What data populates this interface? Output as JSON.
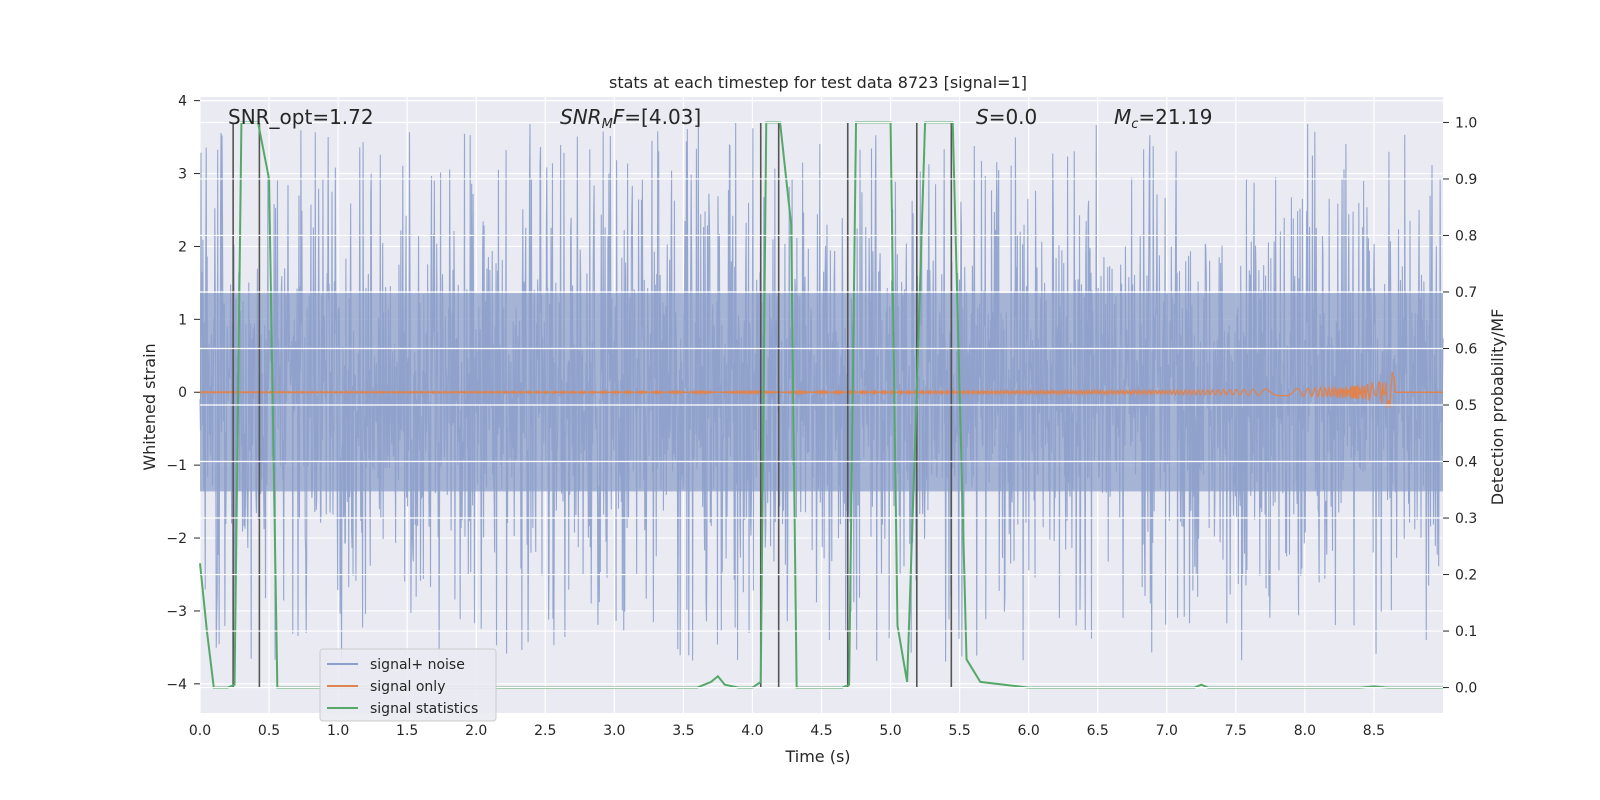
{
  "chart_data": {
    "type": "line",
    "title": "stats at each timestep for test data 8723 [signal=1]",
    "xlabel": "Time (s)",
    "ylabel_left": "Whitened strain",
    "ylabel_right": "Detection probability/MF",
    "xlim": [
      0.0,
      9.0
    ],
    "ylim_left": [
      -4.4,
      4.05
    ],
    "ylim_right": [
      -0.045,
      1.045
    ],
    "x_ticks": [
      "0.0",
      "0.5",
      "1.0",
      "1.5",
      "2.0",
      "2.5",
      "3.0",
      "3.5",
      "4.0",
      "4.5",
      "5.0",
      "5.5",
      "6.0",
      "6.5",
      "7.0",
      "7.5",
      "8.0",
      "8.5"
    ],
    "y_ticks_left": [
      "−4",
      "−3",
      "−2",
      "−1",
      "0",
      "1",
      "2",
      "3",
      "4"
    ],
    "y_ticks_right": [
      "0.0",
      "0.1",
      "0.2",
      "0.3",
      "0.4",
      "0.5",
      "0.6",
      "0.7",
      "0.8",
      "0.9",
      "1.0"
    ],
    "grid": true,
    "legend_position": "lower-left",
    "annotations": {
      "snr_opt": "SNR_opt=1.72",
      "snr_mf_sym": "SNR",
      "snr_mf_sub": "M",
      "snr_mf_tail": "F",
      "snr_mf_value": "=[4.03]",
      "s_sym": "S",
      "s_value": "=0.0",
      "mc_sym": "M",
      "mc_sub": "c",
      "mc_value": "=21.19"
    },
    "colors": {
      "signal_noise": "#8da0cb",
      "signal_only": "#dd8452",
      "signal_statistics": "#55a868",
      "vlines": "#555555",
      "background": "#eaeaf2",
      "grid": "#ffffff"
    },
    "series": [
      {
        "name": "signal+ noise",
        "axis": "left",
        "style": "noise band, typical envelope ±1.5, peaks up to ±3.5",
        "band_center": 0.0,
        "band_halfwidth": 1.6,
        "peak_max": 3.7
      },
      {
        "name": "signal only",
        "axis": "left",
        "style": "chirp near zero, amplitude growing to ~0.35 at merger",
        "merger_time": 8.65,
        "peak_amplitude": 0.35
      },
      {
        "name": "signal statistics",
        "axis": "right",
        "x": [
          0.0,
          0.05,
          0.1,
          0.2,
          0.25,
          0.3,
          0.42,
          0.5,
          0.56,
          0.6,
          1.0,
          2.0,
          3.0,
          3.6,
          3.7,
          3.75,
          3.8,
          3.9,
          4.0,
          4.06,
          4.1,
          4.2,
          4.28,
          4.32,
          4.65,
          4.7,
          4.75,
          5.0,
          5.05,
          5.12,
          5.18,
          5.25,
          5.45,
          5.55,
          5.65,
          6.0,
          7.0,
          7.2,
          7.25,
          7.3,
          8.0,
          8.4,
          8.5,
          8.6,
          9.0
        ],
        "y": [
          0.22,
          0.1,
          0.0,
          0.0,
          0.005,
          1.0,
          1.0,
          0.9,
          0.0,
          0.0,
          0.0,
          0.0,
          0.0,
          0.0,
          0.01,
          0.02,
          0.005,
          0.0,
          0.0,
          0.01,
          1.0,
          1.0,
          0.82,
          0.0,
          0.0,
          0.005,
          1.0,
          1.0,
          0.11,
          0.01,
          0.45,
          1.0,
          1.0,
          0.05,
          0.01,
          0.0,
          0.0,
          0.0,
          0.005,
          0.0,
          0.0,
          0.0,
          0.002,
          0.0,
          0.0
        ]
      }
    ],
    "vlines_x": [
      0.24,
      0.43,
      4.06,
      4.19,
      4.69,
      5.19,
      5.44
    ],
    "legend": [
      {
        "label": "signal+ noise",
        "key": "signal_noise"
      },
      {
        "label": "signal only",
        "key": "signal_only"
      },
      {
        "label": "signal statistics",
        "key": "signal_statistics"
      }
    ]
  }
}
